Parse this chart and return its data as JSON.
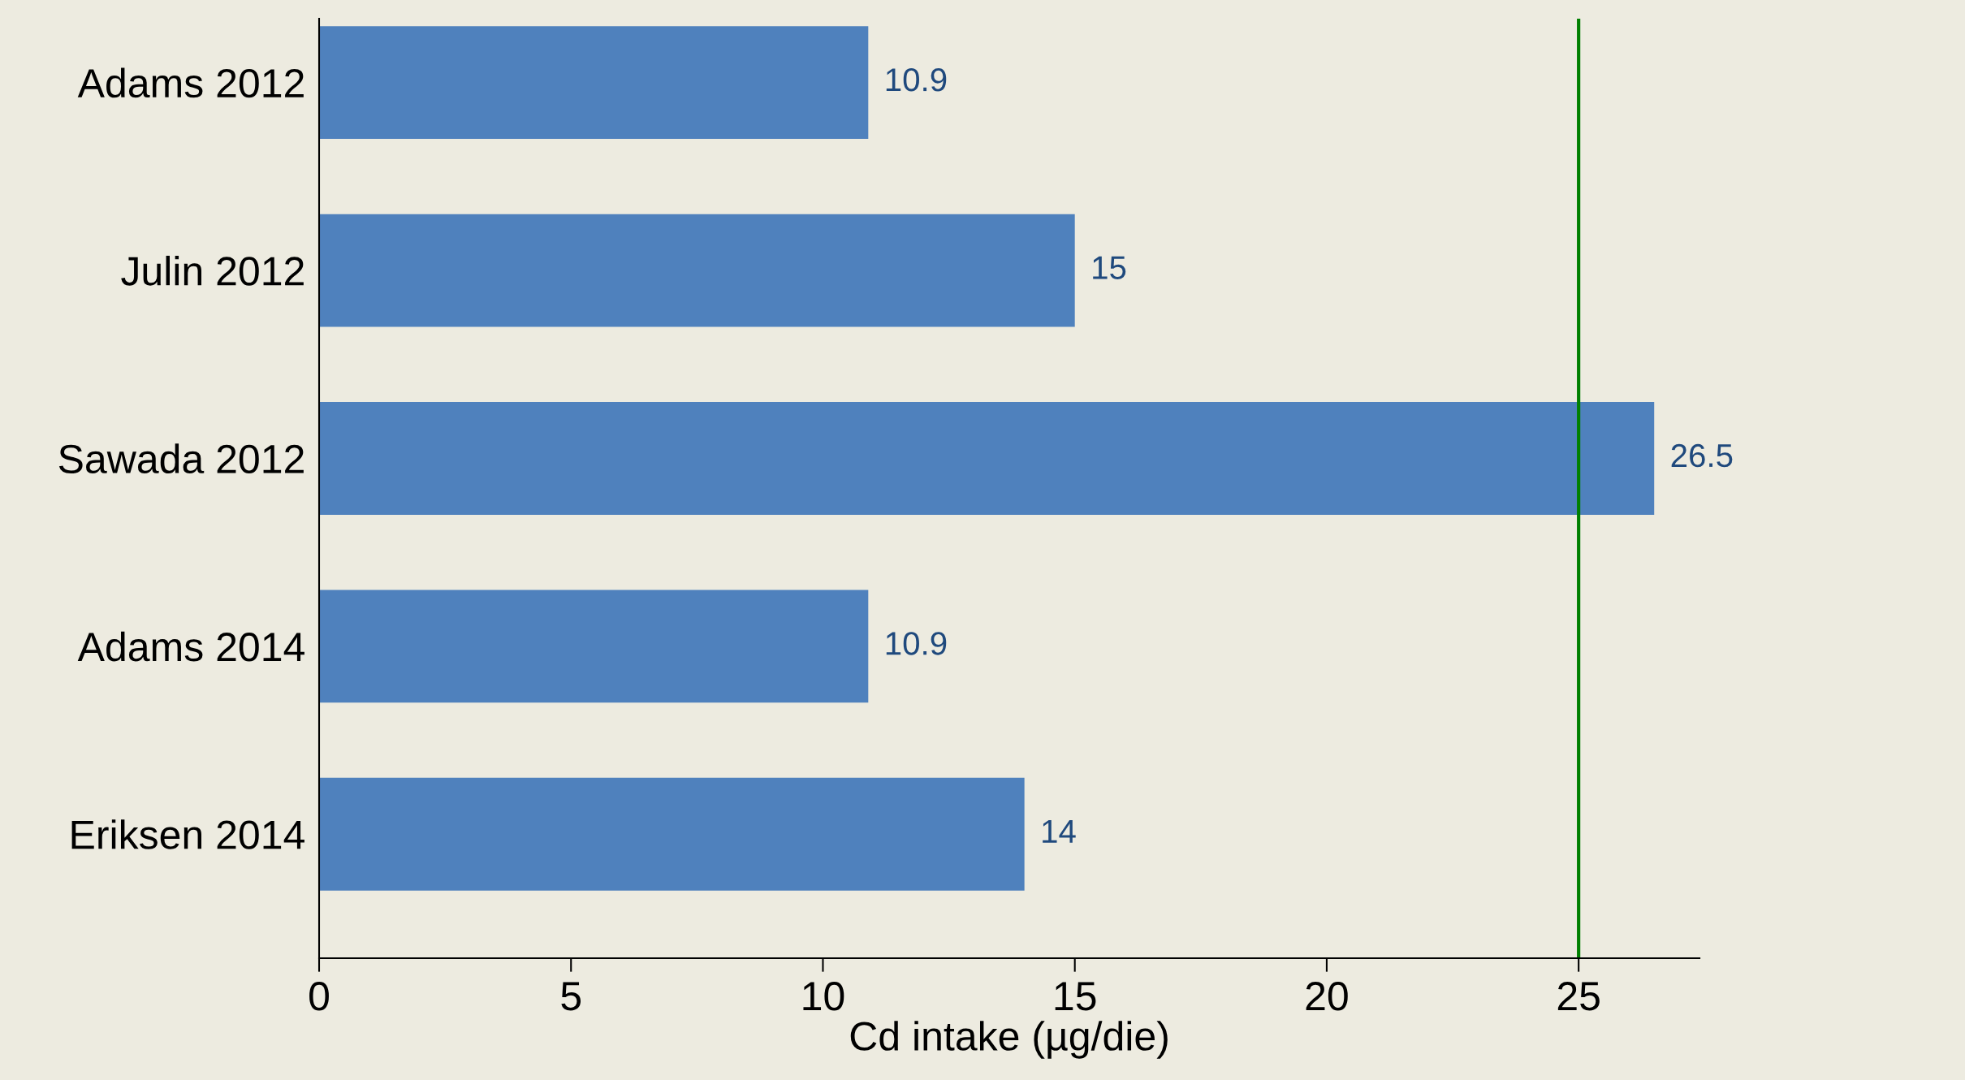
{
  "chart_data": {
    "type": "bar",
    "orientation": "horizontal",
    "xlabel": "Cd intake (µg/die)",
    "categories": [
      "Adams 2012",
      "Julin 2012",
      "Sawada 2012",
      "Adams 2014",
      "Eriksen 2014"
    ],
    "values": [
      10.9,
      15,
      26.5,
      10.9,
      14
    ],
    "color": "#4f81bd",
    "data_labels": true,
    "xlim": [
      0,
      27.4
    ],
    "xticks": [
      0,
      5,
      10,
      15,
      20,
      25
    ],
    "grid": false,
    "ref_lines": [
      {
        "axis": "x",
        "value": 25,
        "color": "#008000"
      }
    ]
  }
}
